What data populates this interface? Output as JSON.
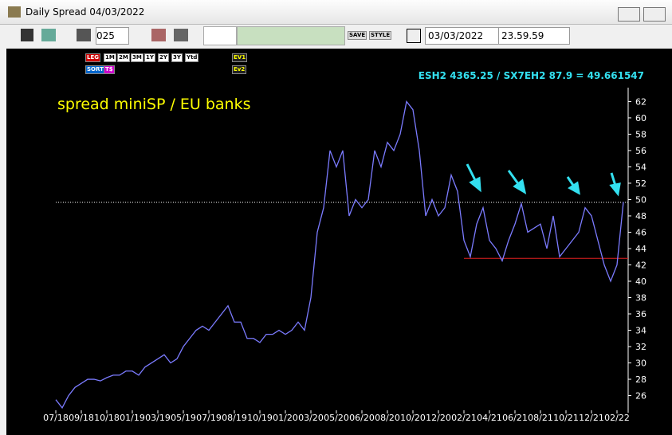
{
  "window": {
    "title": "Daily Spread 04/03/2022"
  },
  "toolbar": {
    "period": "025",
    "date": "03/03/2022",
    "time": "23.59.59",
    "buttons": [
      "SAVE",
      "STYLE"
    ]
  },
  "chart_buttons": [
    "LEG",
    "1M",
    "2M",
    "3M",
    "1Y",
    "2Y",
    "3Y",
    "Ytd",
    "SORT",
    "T$",
    "EV1",
    "Ev2"
  ],
  "chart_data": {
    "type": "line",
    "title": "spread miniSP / EU banks",
    "annotation": "ESH2 4365.25 / SX7EH2 87.9 = 49.661547",
    "categories": [
      "07/18",
      null,
      null,
      null,
      "09/18",
      null,
      null,
      null,
      "10/18",
      null,
      null,
      null,
      "01/19",
      null,
      null,
      null,
      "03/19",
      null,
      null,
      null,
      "05/19",
      null,
      null,
      null,
      "07/19",
      null,
      null,
      null,
      "08/19",
      null,
      null,
      null,
      "10/19",
      null,
      null,
      null,
      "01/20",
      null,
      null,
      null,
      "03/20",
      null,
      null,
      null,
      "05/20",
      null,
      null,
      null,
      "06/20",
      null,
      null,
      null,
      "08/20",
      null,
      null,
      null,
      "10/20",
      null,
      null,
      null,
      "12/20",
      null,
      null,
      null,
      "02/21",
      null,
      null,
      null,
      "04/21",
      null,
      null,
      null,
      "06/21",
      null,
      null,
      null,
      "08/21",
      null,
      null,
      null,
      "10/21",
      null,
      null,
      null,
      "12/21",
      null,
      null,
      null,
      "02/22",
      null
    ],
    "series": [
      {
        "name": "spread",
        "color": "#7b7bff",
        "values": [
          25.5,
          24.5,
          26,
          27,
          27.5,
          28,
          28,
          27.8,
          28.2,
          28.5,
          28.5,
          29,
          29,
          28.5,
          29.5,
          30,
          30.5,
          31,
          30,
          30.5,
          32,
          33,
          34,
          34.5,
          34,
          35,
          36,
          37,
          35,
          35,
          33,
          33,
          32.5,
          33.5,
          33.5,
          34,
          33.5,
          34,
          35,
          34,
          38,
          46,
          49,
          56,
          54,
          56,
          48,
          50,
          49,
          50,
          56,
          54,
          57,
          56,
          58,
          62,
          61,
          56,
          48,
          50,
          48,
          49,
          53,
          51,
          45,
          43,
          47,
          49,
          45,
          44,
          42.5,
          45,
          47,
          49.5,
          46,
          46.5,
          47,
          44,
          48,
          43,
          44,
          45,
          46,
          49,
          48,
          45,
          42,
          40,
          42,
          49.7
        ]
      }
    ],
    "reference_lines": [
      {
        "value": 49.66,
        "color": "#ffffff",
        "style": "dotted"
      },
      {
        "value": 42.8,
        "color": "#e02020",
        "from": "02/21"
      }
    ],
    "ylim": [
      24.2,
      63.7
    ],
    "yticks": [
      26,
      28,
      30,
      32,
      34,
      36,
      38,
      40,
      42,
      44,
      46,
      48,
      50,
      52,
      54,
      56,
      58,
      60,
      62
    ]
  }
}
